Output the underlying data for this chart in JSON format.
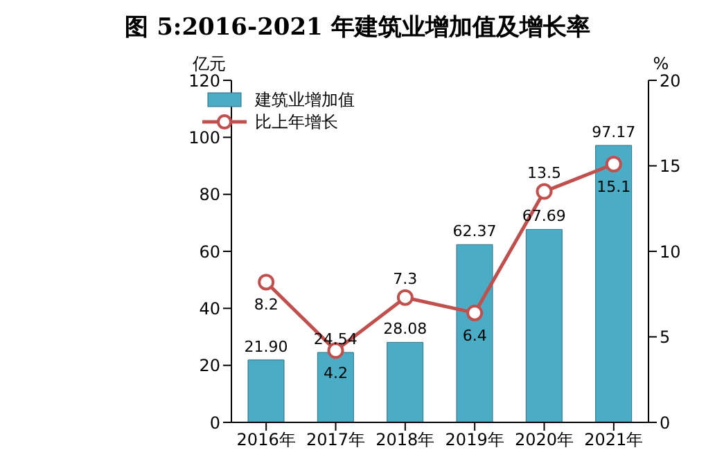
{
  "chart_data": {
    "type": "bar",
    "title": "图 5:2016-2021 年建筑业增加值及增长率",
    "categories": [
      "2016年",
      "2017年",
      "2018年",
      "2019年",
      "2020年",
      "2021年"
    ],
    "series": [
      {
        "name": "建筑业增加值",
        "color": "#4bacc6",
        "values": [
          21.9,
          24.54,
          28.08,
          62.37,
          67.69,
          97.17
        ],
        "value_labels": [
          "21.90",
          "24.54",
          "28.08",
          "62.37",
          "67.69",
          "97.17"
        ]
      },
      {
        "name": "比上年增长",
        "type": "line",
        "axis": "y2",
        "color": "#c0504d",
        "values": [
          8.2,
          4.2,
          7.3,
          6.4,
          13.5,
          15.1
        ],
        "marker": "circle",
        "data_labels": true
      }
    ],
    "ylabel": "亿元",
    "y2label": "%",
    "ylim": [
      0,
      120
    ],
    "yticks": [
      0,
      20,
      40,
      60,
      80,
      100,
      120
    ],
    "y2lim": [
      0,
      20
    ],
    "y2ticks": [
      0,
      5,
      10,
      15,
      20
    ],
    "legend": "top left",
    "grid": false
  }
}
